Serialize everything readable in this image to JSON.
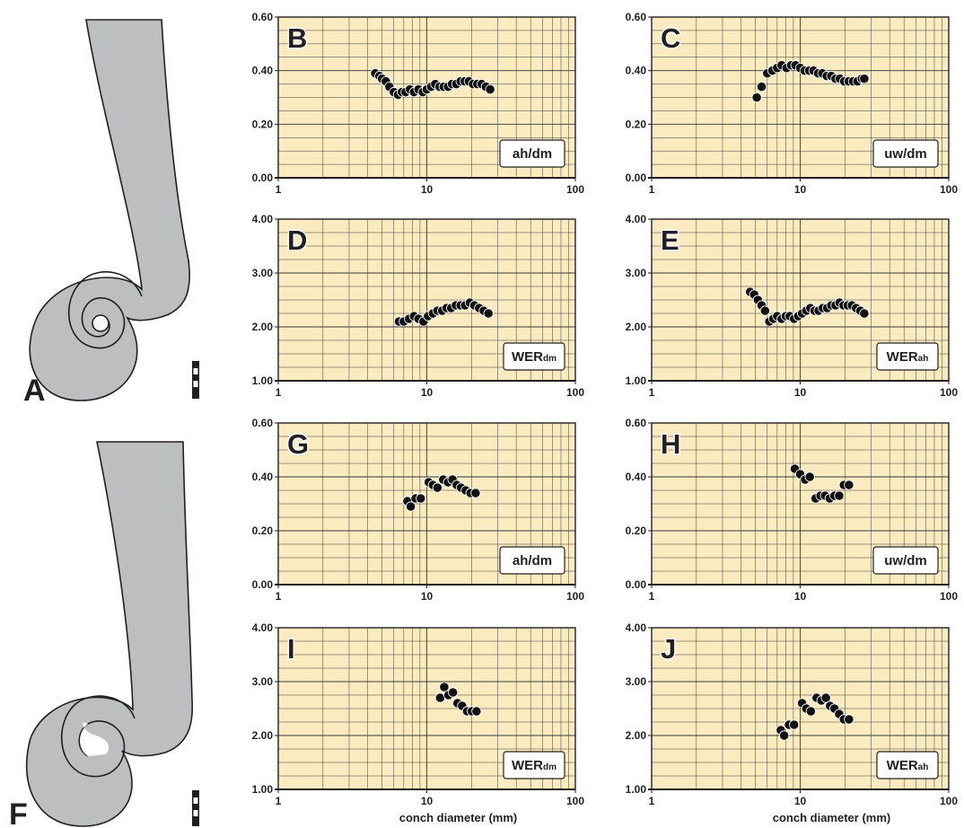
{
  "colors": {
    "plot_bg": "#fbebc0",
    "grid": "#3a3a3a",
    "marker": "#111111",
    "shell_fill": "#bcbec0",
    "ink": "#231f20"
  },
  "figure_labels": {
    "a": "A",
    "f": "F"
  },
  "chart_data": [
    {
      "panel": "B",
      "type": "scatter",
      "xscale": "log",
      "xlim": [
        1,
        100
      ],
      "ylim": [
        0,
        0.6
      ],
      "yticks": [
        "0.00",
        "0.20",
        "0.40",
        "0.60"
      ],
      "xticks": [
        "1",
        "10",
        "100"
      ],
      "ylabel": "ah/dm",
      "ylabel_sub": "",
      "xlabel": "",
      "grid": true,
      "label_position": "bottom-right",
      "x": [
        4.5,
        4.8,
        5.0,
        5.3,
        5.6,
        6.0,
        6.4,
        6.8,
        7.2,
        7.7,
        8.2,
        8.8,
        9.4,
        10.0,
        10.7,
        11.4,
        12.2,
        13.0,
        13.9,
        14.8,
        15.8,
        16.9,
        18.0,
        19.2,
        20.5,
        21.9,
        23.4,
        25.0,
        26.7
      ],
      "y": [
        0.39,
        0.38,
        0.37,
        0.36,
        0.34,
        0.32,
        0.31,
        0.32,
        0.32,
        0.33,
        0.32,
        0.33,
        0.32,
        0.33,
        0.34,
        0.35,
        0.34,
        0.34,
        0.34,
        0.35,
        0.35,
        0.36,
        0.36,
        0.36,
        0.35,
        0.35,
        0.35,
        0.34,
        0.33
      ]
    },
    {
      "panel": "C",
      "type": "scatter",
      "xscale": "log",
      "xlim": [
        1,
        100
      ],
      "ylim": [
        0,
        0.6
      ],
      "yticks": [
        "0.00",
        "0.20",
        "0.40",
        "0.60"
      ],
      "xticks": [
        "1",
        "10",
        "100"
      ],
      "ylabel": "uw/dm",
      "ylabel_sub": "",
      "xlabel": "",
      "grid": true,
      "label_position": "bottom-right",
      "x": [
        5.1,
        5.5,
        6.0,
        6.5,
        7.0,
        7.5,
        8.1,
        8.7,
        9.3,
        10.0,
        10.7,
        11.5,
        12.3,
        13.2,
        14.1,
        15.1,
        16.2,
        17.3,
        18.5,
        19.8,
        21.2,
        22.7,
        24.3,
        26.0,
        27.0
      ],
      "y": [
        0.3,
        0.34,
        0.39,
        0.4,
        0.41,
        0.42,
        0.41,
        0.42,
        0.42,
        0.41,
        0.4,
        0.4,
        0.4,
        0.39,
        0.39,
        0.38,
        0.38,
        0.37,
        0.37,
        0.36,
        0.36,
        0.36,
        0.36,
        0.37,
        0.37
      ]
    },
    {
      "panel": "D",
      "type": "scatter",
      "xscale": "log",
      "xlim": [
        1,
        100
      ],
      "ylim": [
        1,
        4
      ],
      "yticks": [
        "1.00",
        "2.00",
        "3.00",
        "4.00"
      ],
      "xticks": [
        "1",
        "10",
        "100"
      ],
      "ylabel": "WER",
      "ylabel_sub": "dm",
      "xlabel": "",
      "grid": true,
      "label_position": "bottom-right",
      "x": [
        6.5,
        7.0,
        7.6,
        8.2,
        8.8,
        9.5,
        10.2,
        11.0,
        11.8,
        12.7,
        13.6,
        14.6,
        15.7,
        16.9,
        18.1,
        19.5,
        20.9,
        22.5,
        24.2,
        26.0
      ],
      "y": [
        2.1,
        2.1,
        2.15,
        2.2,
        2.15,
        2.1,
        2.2,
        2.25,
        2.3,
        2.3,
        2.35,
        2.35,
        2.4,
        2.4,
        2.4,
        2.45,
        2.4,
        2.35,
        2.3,
        2.25
      ]
    },
    {
      "panel": "E",
      "type": "scatter",
      "xscale": "log",
      "xlim": [
        1,
        100
      ],
      "ylim": [
        1,
        4
      ],
      "yticks": [
        "1.00",
        "2.00",
        "3.00",
        "4.00"
      ],
      "xticks": [
        "1",
        "10",
        "100"
      ],
      "ylabel": "WER",
      "ylabel_sub": "ah",
      "xlabel": "",
      "grid": true,
      "label_position": "bottom-right",
      "x": [
        4.6,
        4.9,
        5.2,
        5.5,
        5.8,
        6.2,
        6.6,
        7.0,
        7.5,
        8.0,
        8.5,
        9.1,
        9.7,
        10.3,
        11.0,
        11.7,
        12.5,
        13.3,
        14.2,
        15.2,
        16.2,
        17.3,
        18.4,
        19.6,
        20.9,
        22.3,
        23.8,
        25.4,
        27.0
      ],
      "y": [
        2.65,
        2.6,
        2.5,
        2.4,
        2.3,
        2.1,
        2.15,
        2.2,
        2.15,
        2.2,
        2.2,
        2.15,
        2.2,
        2.25,
        2.3,
        2.35,
        2.3,
        2.3,
        2.35,
        2.35,
        2.4,
        2.4,
        2.45,
        2.4,
        2.4,
        2.4,
        2.35,
        2.3,
        2.25
      ]
    },
    {
      "panel": "G",
      "type": "scatter",
      "xscale": "log",
      "xlim": [
        1,
        100
      ],
      "ylim": [
        0,
        0.6
      ],
      "yticks": [
        "0.00",
        "0.20",
        "0.40",
        "0.60"
      ],
      "xticks": [
        "1",
        "10",
        "100"
      ],
      "ylabel": "ah/dm",
      "ylabel_sub": "",
      "xlabel": "",
      "grid": true,
      "label_position": "bottom-right",
      "x": [
        7.4,
        7.8,
        8.4,
        9.1,
        10.3,
        11.0,
        11.8,
        12.9,
        13.9,
        14.9,
        15.9,
        17.0,
        18.3,
        19.7,
        21.3
      ],
      "y": [
        0.31,
        0.29,
        0.32,
        0.32,
        0.38,
        0.37,
        0.36,
        0.39,
        0.38,
        0.39,
        0.37,
        0.36,
        0.35,
        0.34,
        0.34
      ]
    },
    {
      "panel": "H",
      "type": "scatter",
      "xscale": "log",
      "xlim": [
        1,
        100
      ],
      "ylim": [
        0,
        0.6
      ],
      "yticks": [
        "0.00",
        "0.20",
        "0.40",
        "0.60"
      ],
      "xticks": [
        "1",
        "10",
        "100"
      ],
      "ylabel": "uw/dm",
      "ylabel_sub": "",
      "xlabel": "",
      "grid": true,
      "label_position": "bottom-right",
      "x": [
        9.2,
        10.0,
        10.8,
        11.6,
        12.7,
        13.7,
        14.7,
        15.8,
        17.0,
        18.3,
        19.7,
        21.3
      ],
      "y": [
        0.43,
        0.41,
        0.39,
        0.4,
        0.32,
        0.33,
        0.33,
        0.32,
        0.33,
        0.33,
        0.37,
        0.37
      ]
    },
    {
      "panel": "I",
      "type": "scatter",
      "xscale": "log",
      "xlim": [
        1,
        100
      ],
      "ylim": [
        1,
        4
      ],
      "yticks": [
        "1.00",
        "2.00",
        "3.00",
        "4.00"
      ],
      "xticks": [
        "1",
        "10",
        "100"
      ],
      "ylabel": "WER",
      "ylabel_sub": "dm",
      "xlabel": "conch diameter (mm)",
      "grid": true,
      "label_position": "bottom-right",
      "x": [
        12.3,
        13.1,
        14.0,
        15.0,
        16.1,
        17.3,
        18.7,
        20.1,
        21.6
      ],
      "y": [
        2.7,
        2.9,
        2.75,
        2.8,
        2.6,
        2.55,
        2.45,
        2.45,
        2.45
      ]
    },
    {
      "panel": "J",
      "type": "scatter",
      "xscale": "log",
      "xlim": [
        1,
        100
      ],
      "ylim": [
        1,
        4
      ],
      "yticks": [
        "1.00",
        "2.00",
        "3.00",
        "4.00"
      ],
      "xticks": [
        "1",
        "10",
        "100"
      ],
      "ylabel": "WER",
      "ylabel_sub": "ah",
      "xlabel": "conch diameter (mm)",
      "grid": true,
      "label_position": "bottom-right",
      "x": [
        7.4,
        7.8,
        8.4,
        9.1,
        10.3,
        11.0,
        11.8,
        12.9,
        13.9,
        14.9,
        15.9,
        17.0,
        18.3,
        19.7,
        21.3
      ],
      "y": [
        2.1,
        2.0,
        2.2,
        2.2,
        2.6,
        2.5,
        2.45,
        2.7,
        2.65,
        2.7,
        2.55,
        2.5,
        2.4,
        2.3,
        2.3
      ]
    }
  ]
}
